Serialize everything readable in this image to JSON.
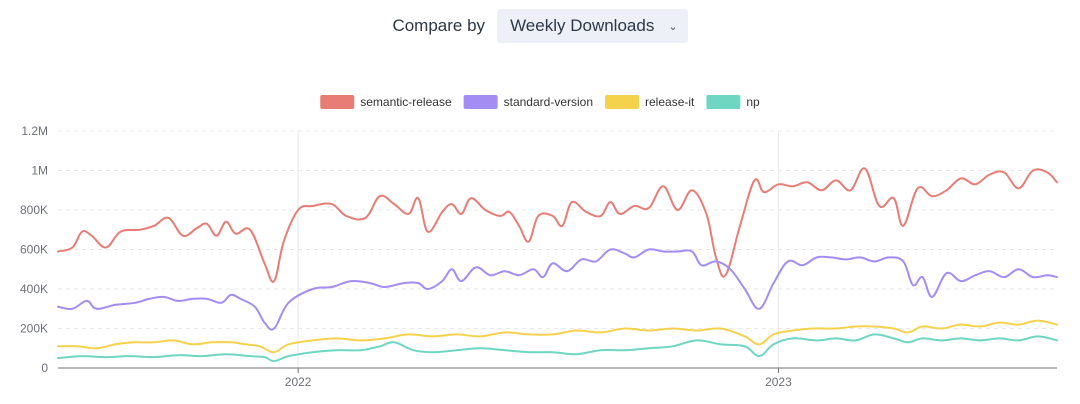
{
  "compare": {
    "label": "Compare by",
    "selected": "Weekly Downloads"
  },
  "colors": {
    "semantic-release": "#e87d76",
    "standard-version": "#a38df2",
    "release-it": "#f5d24c",
    "np": "#6fd6c2"
  },
  "chart_data": {
    "type": "line",
    "title": "",
    "xlabel": "",
    "ylabel": "",
    "ylim": [
      0,
      1200000
    ],
    "y_ticks": [
      "0",
      "200K",
      "400K",
      "600K",
      "800K",
      "1M",
      "1.2M"
    ],
    "x_range": [
      2021.5,
      2023.58
    ],
    "x_ticks": [
      {
        "value": 2022,
        "label": "2022"
      },
      {
        "value": 2023,
        "label": "2023"
      }
    ],
    "legend_position": "top-center",
    "gridlines": true,
    "series": [
      {
        "name": "semantic-release",
        "points": [
          [
            2021.5,
            590000
          ],
          [
            2021.53,
            610000
          ],
          [
            2021.55,
            690000
          ],
          [
            2021.57,
            670000
          ],
          [
            2021.6,
            610000
          ],
          [
            2021.63,
            690000
          ],
          [
            2021.67,
            700000
          ],
          [
            2021.7,
            720000
          ],
          [
            2021.73,
            760000
          ],
          [
            2021.76,
            670000
          ],
          [
            2021.79,
            710000
          ],
          [
            2021.81,
            730000
          ],
          [
            2021.83,
            670000
          ],
          [
            2021.85,
            740000
          ],
          [
            2021.87,
            680000
          ],
          [
            2021.9,
            700000
          ],
          [
            2021.93,
            530000
          ],
          [
            2021.95,
            440000
          ],
          [
            2021.97,
            640000
          ],
          [
            2022.0,
            800000
          ],
          [
            2022.03,
            820000
          ],
          [
            2022.07,
            830000
          ],
          [
            2022.1,
            770000
          ],
          [
            2022.14,
            760000
          ],
          [
            2022.17,
            870000
          ],
          [
            2022.2,
            830000
          ],
          [
            2022.23,
            780000
          ],
          [
            2022.25,
            860000
          ],
          [
            2022.27,
            690000
          ],
          [
            2022.3,
            790000
          ],
          [
            2022.32,
            830000
          ],
          [
            2022.34,
            780000
          ],
          [
            2022.36,
            860000
          ],
          [
            2022.39,
            800000
          ],
          [
            2022.42,
            770000
          ],
          [
            2022.44,
            790000
          ],
          [
            2022.46,
            720000
          ],
          [
            2022.48,
            640000
          ],
          [
            2022.5,
            770000
          ],
          [
            2022.53,
            770000
          ],
          [
            2022.55,
            720000
          ],
          [
            2022.57,
            840000
          ],
          [
            2022.6,
            790000
          ],
          [
            2022.63,
            770000
          ],
          [
            2022.65,
            840000
          ],
          [
            2022.67,
            780000
          ],
          [
            2022.7,
            820000
          ],
          [
            2022.73,
            810000
          ],
          [
            2022.76,
            920000
          ],
          [
            2022.79,
            800000
          ],
          [
            2022.82,
            900000
          ],
          [
            2022.85,
            780000
          ],
          [
            2022.87,
            560000
          ],
          [
            2022.89,
            470000
          ],
          [
            2022.92,
            720000
          ],
          [
            2022.95,
            950000
          ],
          [
            2022.97,
            890000
          ],
          [
            2023.0,
            930000
          ],
          [
            2023.03,
            920000
          ],
          [
            2023.06,
            940000
          ],
          [
            2023.09,
            900000
          ],
          [
            2023.12,
            950000
          ],
          [
            2023.15,
            900000
          ],
          [
            2023.18,
            1010000
          ],
          [
            2023.21,
            820000
          ],
          [
            2023.24,
            860000
          ],
          [
            2023.26,
            720000
          ],
          [
            2023.29,
            910000
          ],
          [
            2023.32,
            870000
          ],
          [
            2023.35,
            900000
          ],
          [
            2023.38,
            960000
          ],
          [
            2023.41,
            930000
          ],
          [
            2023.44,
            980000
          ],
          [
            2023.47,
            990000
          ],
          [
            2023.5,
            910000
          ],
          [
            2023.53,
            1000000
          ],
          [
            2023.56,
            990000
          ],
          [
            2023.58,
            940000
          ]
        ]
      },
      {
        "name": "standard-version",
        "points": [
          [
            2021.5,
            310000
          ],
          [
            2021.53,
            300000
          ],
          [
            2021.56,
            340000
          ],
          [
            2021.58,
            300000
          ],
          [
            2021.62,
            320000
          ],
          [
            2021.66,
            330000
          ],
          [
            2021.69,
            350000
          ],
          [
            2021.72,
            360000
          ],
          [
            2021.75,
            340000
          ],
          [
            2021.78,
            350000
          ],
          [
            2021.81,
            350000
          ],
          [
            2021.84,
            330000
          ],
          [
            2021.86,
            370000
          ],
          [
            2021.88,
            350000
          ],
          [
            2021.91,
            310000
          ],
          [
            2021.93,
            230000
          ],
          [
            2021.95,
            200000
          ],
          [
            2021.98,
            330000
          ],
          [
            2022.03,
            400000
          ],
          [
            2022.07,
            410000
          ],
          [
            2022.11,
            440000
          ],
          [
            2022.15,
            430000
          ],
          [
            2022.18,
            410000
          ],
          [
            2022.22,
            430000
          ],
          [
            2022.25,
            430000
          ],
          [
            2022.27,
            400000
          ],
          [
            2022.3,
            440000
          ],
          [
            2022.32,
            500000
          ],
          [
            2022.34,
            440000
          ],
          [
            2022.37,
            510000
          ],
          [
            2022.4,
            470000
          ],
          [
            2022.43,
            490000
          ],
          [
            2022.46,
            470000
          ],
          [
            2022.49,
            500000
          ],
          [
            2022.51,
            460000
          ],
          [
            2022.53,
            530000
          ],
          [
            2022.56,
            490000
          ],
          [
            2022.59,
            550000
          ],
          [
            2022.62,
            540000
          ],
          [
            2022.65,
            600000
          ],
          [
            2022.68,
            580000
          ],
          [
            2022.7,
            560000
          ],
          [
            2022.73,
            600000
          ],
          [
            2022.76,
            590000
          ],
          [
            2022.79,
            590000
          ],
          [
            2022.82,
            590000
          ],
          [
            2022.84,
            520000
          ],
          [
            2022.87,
            540000
          ],
          [
            2022.9,
            500000
          ],
          [
            2022.93,
            400000
          ],
          [
            2022.96,
            300000
          ],
          [
            2022.99,
            430000
          ],
          [
            2023.02,
            540000
          ],
          [
            2023.05,
            520000
          ],
          [
            2023.08,
            560000
          ],
          [
            2023.11,
            560000
          ],
          [
            2023.14,
            550000
          ],
          [
            2023.17,
            560000
          ],
          [
            2023.2,
            540000
          ],
          [
            2023.23,
            560000
          ],
          [
            2023.26,
            540000
          ],
          [
            2023.28,
            420000
          ],
          [
            2023.3,
            460000
          ],
          [
            2023.32,
            360000
          ],
          [
            2023.35,
            480000
          ],
          [
            2023.38,
            440000
          ],
          [
            2023.41,
            470000
          ],
          [
            2023.44,
            490000
          ],
          [
            2023.47,
            460000
          ],
          [
            2023.5,
            500000
          ],
          [
            2023.53,
            460000
          ],
          [
            2023.56,
            470000
          ],
          [
            2023.58,
            460000
          ]
        ]
      },
      {
        "name": "release-it",
        "points": [
          [
            2021.5,
            110000
          ],
          [
            2021.54,
            110000
          ],
          [
            2021.58,
            100000
          ],
          [
            2021.62,
            120000
          ],
          [
            2021.66,
            130000
          ],
          [
            2021.7,
            130000
          ],
          [
            2021.74,
            140000
          ],
          [
            2021.78,
            120000
          ],
          [
            2021.82,
            130000
          ],
          [
            2021.86,
            130000
          ],
          [
            2021.89,
            120000
          ],
          [
            2021.92,
            110000
          ],
          [
            2021.95,
            80000
          ],
          [
            2021.98,
            120000
          ],
          [
            2022.03,
            140000
          ],
          [
            2022.08,
            150000
          ],
          [
            2022.13,
            140000
          ],
          [
            2022.18,
            150000
          ],
          [
            2022.23,
            170000
          ],
          [
            2022.28,
            160000
          ],
          [
            2022.33,
            170000
          ],
          [
            2022.38,
            160000
          ],
          [
            2022.43,
            180000
          ],
          [
            2022.48,
            170000
          ],
          [
            2022.53,
            170000
          ],
          [
            2022.58,
            190000
          ],
          [
            2022.63,
            180000
          ],
          [
            2022.68,
            200000
          ],
          [
            2022.73,
            190000
          ],
          [
            2022.78,
            200000
          ],
          [
            2022.83,
            190000
          ],
          [
            2022.88,
            200000
          ],
          [
            2022.93,
            160000
          ],
          [
            2022.96,
            120000
          ],
          [
            2022.99,
            170000
          ],
          [
            2023.03,
            190000
          ],
          [
            2023.07,
            200000
          ],
          [
            2023.12,
            200000
          ],
          [
            2023.16,
            210000
          ],
          [
            2023.2,
            210000
          ],
          [
            2023.24,
            200000
          ],
          [
            2023.27,
            180000
          ],
          [
            2023.3,
            210000
          ],
          [
            2023.34,
            200000
          ],
          [
            2023.38,
            220000
          ],
          [
            2023.42,
            210000
          ],
          [
            2023.46,
            230000
          ],
          [
            2023.5,
            220000
          ],
          [
            2023.54,
            240000
          ],
          [
            2023.58,
            220000
          ]
        ]
      },
      {
        "name": "np",
        "points": [
          [
            2021.5,
            50000
          ],
          [
            2021.55,
            60000
          ],
          [
            2021.6,
            55000
          ],
          [
            2021.65,
            60000
          ],
          [
            2021.7,
            55000
          ],
          [
            2021.75,
            65000
          ],
          [
            2021.8,
            60000
          ],
          [
            2021.85,
            70000
          ],
          [
            2021.9,
            60000
          ],
          [
            2021.93,
            55000
          ],
          [
            2021.95,
            35000
          ],
          [
            2021.98,
            60000
          ],
          [
            2022.03,
            80000
          ],
          [
            2022.08,
            90000
          ],
          [
            2022.13,
            90000
          ],
          [
            2022.17,
            110000
          ],
          [
            2022.2,
            130000
          ],
          [
            2022.24,
            90000
          ],
          [
            2022.28,
            80000
          ],
          [
            2022.33,
            90000
          ],
          [
            2022.38,
            100000
          ],
          [
            2022.43,
            90000
          ],
          [
            2022.48,
            80000
          ],
          [
            2022.53,
            80000
          ],
          [
            2022.58,
            70000
          ],
          [
            2022.63,
            90000
          ],
          [
            2022.68,
            90000
          ],
          [
            2022.73,
            100000
          ],
          [
            2022.78,
            110000
          ],
          [
            2022.83,
            140000
          ],
          [
            2022.88,
            120000
          ],
          [
            2022.93,
            110000
          ],
          [
            2022.96,
            60000
          ],
          [
            2022.99,
            120000
          ],
          [
            2023.03,
            150000
          ],
          [
            2023.08,
            140000
          ],
          [
            2023.12,
            150000
          ],
          [
            2023.16,
            140000
          ],
          [
            2023.2,
            170000
          ],
          [
            2023.24,
            150000
          ],
          [
            2023.27,
            130000
          ],
          [
            2023.3,
            150000
          ],
          [
            2023.34,
            140000
          ],
          [
            2023.38,
            150000
          ],
          [
            2023.42,
            140000
          ],
          [
            2023.46,
            150000
          ],
          [
            2023.5,
            140000
          ],
          [
            2023.54,
            160000
          ],
          [
            2023.58,
            140000
          ]
        ]
      }
    ]
  }
}
